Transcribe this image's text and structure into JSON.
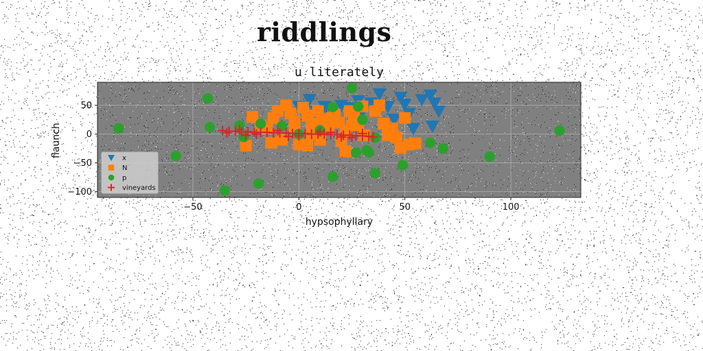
{
  "figure_title": "riddlings",
  "colors": {
    "x": "#1f77b4",
    "N": "#ff7f0e",
    "p": "#2ca02c",
    "vineyards": "#d62728",
    "plot_bg": "#808080",
    "grid": "#b0b0b0"
  },
  "chart_data": {
    "type": "scatter",
    "title": "u literately",
    "xlabel": "hypsophyllary",
    "ylabel": "flaunch",
    "xlim": [
      -95,
      133
    ],
    "ylim": [
      -110,
      90
    ],
    "xticks": [
      -50,
      0,
      50,
      100
    ],
    "yticks": [
      50,
      0,
      -50,
      -100
    ],
    "xtick_labels": [
      "−50",
      "0",
      "50",
      "100"
    ],
    "ytick_labels": [
      "50",
      "0",
      "−50",
      "−100"
    ],
    "grid": true,
    "legend_position": "lower-left",
    "series": [
      {
        "name": "x",
        "marker": "triangle-down",
        "color": "#1f77b4",
        "points": [
          [
            0,
            48
          ],
          [
            5,
            60
          ],
          [
            8,
            40
          ],
          [
            12,
            48
          ],
          [
            15,
            44
          ],
          [
            20,
            50
          ],
          [
            24,
            46
          ],
          [
            28,
            58
          ],
          [
            30,
            40
          ],
          [
            34,
            54
          ],
          [
            38,
            70
          ],
          [
            42,
            48
          ],
          [
            45,
            26
          ],
          [
            48,
            64
          ],
          [
            50,
            52
          ],
          [
            52,
            36
          ],
          [
            54,
            10
          ],
          [
            58,
            60
          ],
          [
            62,
            68
          ],
          [
            64,
            54
          ],
          [
            66,
            40
          ],
          [
            63,
            14
          ]
        ]
      },
      {
        "name": "N",
        "marker": "square",
        "color": "#ff7f0e",
        "points": [
          [
            -10,
            40
          ],
          [
            -6,
            50
          ],
          [
            -12,
            28
          ],
          [
            -4,
            36
          ],
          [
            -2,
            22
          ],
          [
            2,
            46
          ],
          [
            4,
            32
          ],
          [
            6,
            18
          ],
          [
            9,
            40
          ],
          [
            11,
            26
          ],
          [
            14,
            12
          ],
          [
            17,
            34
          ],
          [
            19,
            20
          ],
          [
            22,
            6
          ],
          [
            24,
            40
          ],
          [
            26,
            30
          ],
          [
            28,
            16
          ],
          [
            30,
            48
          ],
          [
            -22,
            30
          ],
          [
            -25,
            -20
          ],
          [
            -15,
            10
          ],
          [
            -8,
            -10
          ],
          [
            -13,
            -15
          ],
          [
            0,
            -18
          ],
          [
            10,
            -10
          ],
          [
            20,
            -12
          ],
          [
            22,
            -30
          ],
          [
            31,
            -2
          ],
          [
            36,
            40
          ],
          [
            40,
            18
          ],
          [
            44,
            10
          ],
          [
            46,
            -6
          ],
          [
            48,
            -24
          ],
          [
            52,
            -18
          ],
          [
            55,
            -16
          ],
          [
            50,
            28
          ],
          [
            42,
            -2
          ],
          [
            -2,
            12
          ],
          [
            6,
            0
          ],
          [
            -18,
            15
          ],
          [
            4,
            -20
          ],
          [
            38,
            50
          ],
          [
            16,
            28
          ],
          [
            25,
            15
          ]
        ]
      },
      {
        "name": "p",
        "marker": "circle",
        "color": "#2ca02c",
        "points": [
          [
            -85,
            10
          ],
          [
            -58,
            -38
          ],
          [
            -43,
            62
          ],
          [
            -42,
            12
          ],
          [
            -35,
            -98
          ],
          [
            -28,
            15
          ],
          [
            -26,
            -5
          ],
          [
            -19,
            -86
          ],
          [
            -18,
            18
          ],
          [
            -8,
            14
          ],
          [
            0,
            0
          ],
          [
            16,
            47
          ],
          [
            16,
            -74
          ],
          [
            25,
            80
          ],
          [
            27,
            -32
          ],
          [
            28,
            48
          ],
          [
            32,
            -28
          ],
          [
            33,
            -32
          ],
          [
            36,
            -6
          ],
          [
            36,
            -68
          ],
          [
            49,
            -54
          ],
          [
            62,
            -15
          ],
          [
            68,
            -25
          ],
          [
            90,
            -39
          ],
          [
            123,
            6
          ],
          [
            10,
            6
          ],
          [
            30,
            25
          ]
        ]
      },
      {
        "name": "vineyards",
        "marker": "plus",
        "color": "#d62728",
        "points": [
          [
            -36,
            6
          ],
          [
            -33,
            5
          ],
          [
            -30,
            5
          ],
          [
            -27,
            4
          ],
          [
            -24,
            4
          ],
          [
            -21,
            3
          ],
          [
            -18,
            3
          ],
          [
            -15,
            3
          ],
          [
            -12,
            2
          ],
          [
            -9,
            2
          ],
          [
            -6,
            2
          ],
          [
            -3,
            1
          ],
          [
            0,
            1
          ],
          [
            3,
            1
          ],
          [
            6,
            0
          ],
          [
            9,
            0
          ],
          [
            12,
            0
          ],
          [
            15,
            -1
          ],
          [
            18,
            -1
          ],
          [
            21,
            -2
          ],
          [
            24,
            -2
          ],
          [
            27,
            -3
          ],
          [
            30,
            -3
          ],
          [
            33,
            -4
          ],
          [
            35,
            -5
          ],
          [
            -34,
            2
          ],
          [
            -28,
            8
          ],
          [
            -20,
            0
          ],
          [
            -10,
            6
          ],
          [
            0,
            -3
          ],
          [
            10,
            4
          ],
          [
            20,
            -5
          ],
          [
            30,
            1
          ],
          [
            -25,
            -2
          ],
          [
            -5,
            -4
          ],
          [
            15,
            3
          ],
          [
            25,
            -6
          ]
        ]
      }
    ]
  }
}
